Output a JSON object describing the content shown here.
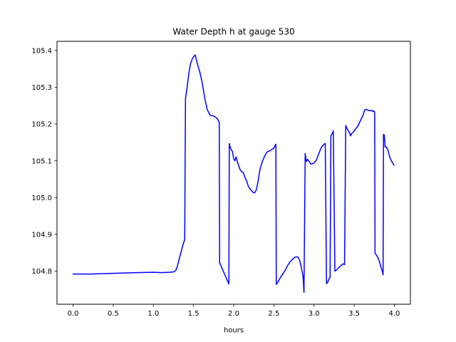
{
  "chart_data": {
    "type": "line",
    "title": "Water Depth h at gauge 530",
    "xlabel": "hours",
    "ylabel": "",
    "xlim": [
      -0.2,
      4.2
    ],
    "ylim": [
      104.71,
      105.425
    ],
    "xticks": [
      0.0,
      0.5,
      1.0,
      1.5,
      2.0,
      2.5,
      3.0,
      3.5,
      4.0
    ],
    "xtick_labels": [
      "0.0",
      "0.5",
      "1.0",
      "1.5",
      "2.0",
      "2.5",
      "3.0",
      "3.5",
      "4.0"
    ],
    "yticks": [
      104.8,
      104.9,
      105.0,
      105.1,
      105.2,
      105.3,
      105.4
    ],
    "ytick_labels": [
      "104.8",
      "104.9",
      "105.0",
      "105.1",
      "105.2",
      "105.3",
      "105.4"
    ],
    "grid": false,
    "series": [
      {
        "color": "#0000ff",
        "x": [
          0.0,
          0.2,
          0.5,
          0.8,
          1.0,
          1.1,
          1.2,
          1.25,
          1.28,
          1.3,
          1.33,
          1.36,
          1.385,
          1.39,
          1.4,
          1.42,
          1.44,
          1.46,
          1.48,
          1.5,
          1.52,
          1.53,
          1.55,
          1.58,
          1.61,
          1.64,
          1.67,
          1.7,
          1.72,
          1.75,
          1.78,
          1.8,
          1.82,
          1.825,
          1.85,
          1.88,
          1.91,
          1.94,
          1.945,
          1.955,
          1.97,
          1.985,
          2.0,
          2.015,
          2.03,
          2.045,
          2.06,
          2.08,
          2.1,
          2.12,
          2.14,
          2.16,
          2.18,
          2.2,
          2.22,
          2.24,
          2.26,
          2.28,
          2.3,
          2.33,
          2.36,
          2.39,
          2.42,
          2.45,
          2.48,
          2.5,
          2.51,
          2.525,
          2.53,
          2.55,
          2.58,
          2.61,
          2.64,
          2.67,
          2.7,
          2.73,
          2.76,
          2.78,
          2.8,
          2.82,
          2.84,
          2.86,
          2.865,
          2.875,
          2.89,
          2.905,
          2.92,
          2.94,
          2.96,
          2.98,
          3.0,
          3.03,
          3.06,
          3.09,
          3.12,
          3.135,
          3.14,
          3.155,
          3.17,
          3.185,
          3.2,
          3.21,
          3.235,
          3.24,
          3.26,
          3.28,
          3.3,
          3.33,
          3.36,
          3.375,
          3.38,
          3.395,
          3.41,
          3.425,
          3.44,
          3.455,
          3.47,
          3.49,
          3.51,
          3.53,
          3.55,
          3.57,
          3.59,
          3.61,
          3.63,
          3.65,
          3.67,
          3.7,
          3.72,
          3.735,
          3.745,
          3.755,
          3.76,
          3.78,
          3.8,
          3.82,
          3.84,
          3.855,
          3.86,
          3.865,
          3.875,
          3.885,
          3.9,
          3.92,
          3.94,
          3.96,
          3.98,
          3.995
        ],
        "y": [
          104.792,
          104.792,
          104.794,
          104.796,
          104.797,
          104.796,
          104.797,
          104.798,
          104.802,
          104.815,
          104.84,
          104.865,
          104.883,
          104.888,
          105.27,
          105.3,
          105.335,
          105.362,
          105.375,
          105.383,
          105.388,
          105.38,
          105.362,
          105.34,
          105.31,
          105.27,
          105.24,
          105.226,
          105.223,
          105.222,
          105.218,
          105.213,
          105.205,
          104.823,
          104.81,
          104.795,
          104.78,
          104.765,
          105.147,
          105.138,
          105.13,
          105.125,
          105.105,
          105.1,
          105.111,
          105.098,
          105.088,
          105.076,
          105.07,
          105.068,
          105.055,
          105.046,
          105.032,
          105.024,
          105.02,
          105.014,
          105.013,
          105.02,
          105.04,
          105.08,
          105.1,
          105.115,
          105.125,
          105.127,
          105.132,
          105.134,
          105.14,
          105.145,
          104.764,
          104.77,
          104.782,
          104.792,
          104.802,
          104.815,
          104.825,
          104.832,
          104.838,
          104.839,
          104.838,
          104.83,
          104.812,
          104.79,
          104.78,
          104.742,
          105.12,
          105.098,
          105.104,
          105.098,
          105.091,
          105.092,
          105.094,
          105.102,
          105.12,
          105.136,
          105.144,
          105.147,
          105.147,
          104.766,
          104.77,
          104.778,
          104.783,
          105.168,
          105.178,
          105.182,
          104.8,
          104.803,
          104.808,
          104.814,
          104.82,
          104.818,
          104.818,
          105.196,
          105.188,
          105.183,
          105.177,
          105.168,
          105.175,
          105.178,
          105.185,
          105.19,
          105.196,
          105.206,
          105.215,
          105.224,
          105.238,
          105.24,
          105.238,
          105.236,
          105.237,
          105.234,
          105.236,
          105.232,
          104.848,
          104.843,
          104.835,
          104.822,
          104.806,
          104.796,
          104.79,
          105.172,
          105.17,
          105.138,
          105.138,
          105.13,
          105.112,
          105.101,
          105.094,
          105.088
        ]
      }
    ]
  }
}
